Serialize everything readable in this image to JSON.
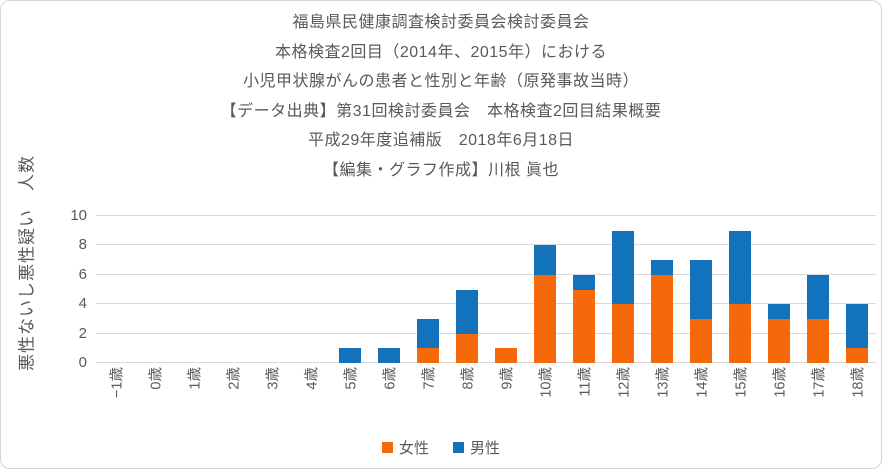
{
  "title": {
    "lines": [
      "福島県民健康調査検討委員会検討委員会",
      "本格検査2回目（2014年、2015年）における",
      "小児甲状腺がんの患者と性別と年齢（原発事故当時）",
      "【データ出典】第31回検討委員会　本格検査2回目結果概要",
      "平成29年度追補版　2018年6月18日",
      "【編集・グラフ作成】川根 眞也"
    ]
  },
  "y_axis": {
    "title": "悪性ないし悪性疑い　人数",
    "ticks": [
      0,
      2,
      4,
      6,
      8,
      10
    ],
    "max": 10
  },
  "colors": {
    "text": "#595959",
    "grid": "#d9d9d9",
    "frame_border": "#d6d6d6",
    "female": "#f6690a",
    "male": "#1272bc"
  },
  "chart_data": {
    "type": "bar",
    "stacked": true,
    "title": "福島県民健康調査検討委員会検討委員会 本格検査2回目（2014年、2015年）における小児甲状腺がんの患者と性別と年齢（原発事故当時）",
    "xlabel": "",
    "ylabel": "悪性ないし悪性疑い　人数",
    "ylim": [
      0,
      10
    ],
    "grid": true,
    "legend_position": "bottom",
    "categories": [
      "−1歳",
      "0歳",
      "1歳",
      "2歳",
      "3歳",
      "4歳",
      "5歳",
      "6歳",
      "7歳",
      "8歳",
      "9歳",
      "10歳",
      "11歳",
      "12歳",
      "13歳",
      "14歳",
      "15歳",
      "16歳",
      "17歳",
      "18歳"
    ],
    "series": [
      {
        "name": "女性",
        "color": "#f6690a",
        "values": [
          0,
          0,
          0,
          0,
          0,
          0,
          0,
          0,
          1,
          2,
          1,
          6,
          5,
          4,
          6,
          3,
          4,
          3,
          3,
          1
        ]
      },
      {
        "name": "男性",
        "color": "#1272bc",
        "values": [
          0,
          0,
          0,
          0,
          0,
          0,
          1,
          1,
          2,
          3,
          0,
          2,
          1,
          5,
          1,
          4,
          5,
          1,
          3,
          3
        ]
      }
    ]
  }
}
